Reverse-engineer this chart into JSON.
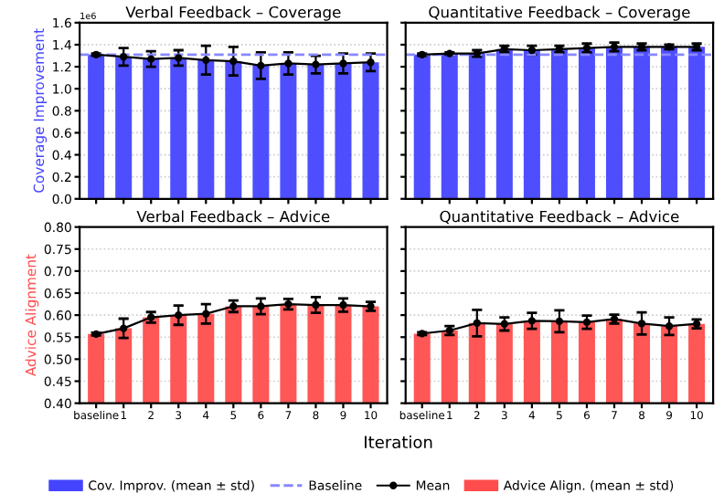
{
  "chart_data": [
    {
      "type": "bar",
      "title": "Verbal Feedback – Coverage",
      "ylabel": "Coverage Improvement",
      "annotations": [
        "1e6"
      ],
      "categories": [
        "baseline",
        "1",
        "2",
        "3",
        "4",
        "5",
        "6",
        "7",
        "8",
        "9",
        "10"
      ],
      "ylim": [
        0,
        1.6
      ],
      "yticks": [
        {
          "value": 0,
          "label": "0.0"
        },
        0.2,
        0.4,
        0.6,
        0.8,
        {
          "value": 1,
          "label": "1.0"
        },
        1.2,
        1.4,
        1.6
      ],
      "tick_labels": "y",
      "grid": "y",
      "legend": "bottom",
      "ref_lines": [
        {
          "axis": "y",
          "value": 1.31,
          "label": "Baseline",
          "color": "#8888ff",
          "line_style": "dashed"
        }
      ],
      "series": [
        {
          "name": "Cov. Improv. (mean ± std)",
          "type": "bar",
          "color": "#4444ff",
          "values": [
            1.31,
            1.29,
            1.27,
            1.28,
            1.26,
            1.25,
            1.21,
            1.23,
            1.22,
            1.23,
            1.24
          ]
        },
        {
          "name": "Mean",
          "type": "line",
          "color": "#000000",
          "marker": "circle",
          "values": [
            1.31,
            1.29,
            1.27,
            1.28,
            1.26,
            1.25,
            1.21,
            1.23,
            1.22,
            1.23,
            1.24
          ],
          "errors": [
            0.01,
            0.08,
            0.07,
            0.07,
            0.13,
            0.13,
            0.12,
            0.1,
            0.08,
            0.09,
            0.08
          ]
        }
      ]
    },
    {
      "type": "bar",
      "title": "Quantitative Feedback – Coverage",
      "categories": [
        "baseline",
        "1",
        "2",
        "3",
        "4",
        "5",
        "6",
        "7",
        "8",
        "9",
        "10"
      ],
      "ylim": [
        0,
        1.6
      ],
      "yticks": [
        0,
        0.2,
        0.4,
        0.6,
        0.8,
        1,
        1.2,
        1.4,
        1.6
      ],
      "tick_labels": false,
      "grid": "y",
      "legend": "bottom",
      "ref_lines": [
        {
          "axis": "y",
          "value": 1.31,
          "color": "#8888ff",
          "line_style": "dashed"
        }
      ],
      "series": [
        {
          "name": "Cov. Improv. (mean ± std)",
          "type": "bar",
          "color": "#4444ff",
          "values": [
            1.31,
            1.32,
            1.32,
            1.36,
            1.35,
            1.36,
            1.37,
            1.38,
            1.38,
            1.38,
            1.38
          ]
        },
        {
          "name": "Mean",
          "type": "line",
          "color": "#000000",
          "marker": "circle",
          "values": [
            1.31,
            1.32,
            1.32,
            1.36,
            1.35,
            1.36,
            1.37,
            1.38,
            1.38,
            1.38,
            1.38
          ],
          "errors": [
            0.01,
            0.01,
            0.03,
            0.03,
            0.04,
            0.03,
            0.04,
            0.04,
            0.03,
            0.02,
            0.03
          ]
        }
      ]
    },
    {
      "type": "bar",
      "title": "Verbal Feedback – Advice",
      "ylabel": "Advice Alignment",
      "xlabel": "Iteration",
      "categories": [
        "baseline",
        "1",
        "2",
        "3",
        "4",
        "5",
        "6",
        "7",
        "8",
        "9",
        "10"
      ],
      "ylim": [
        0.4,
        0.8
      ],
      "yticks": [
        {
          "value": 0.4,
          "label": "0.40"
        },
        0.45,
        {
          "value": 0.5,
          "label": "0.50"
        },
        0.55,
        {
          "value": 0.6,
          "label": "0.60"
        },
        0.65,
        {
          "value": 0.7,
          "label": "0.70"
        },
        0.75,
        {
          "value": 0.8,
          "label": "0.80"
        }
      ],
      "grid": "y",
      "legend": "bottom",
      "series": [
        {
          "name": "Advice Align. (mean ± std)",
          "type": "bar",
          "color": "#ff4d4d",
          "values": [
            0.557,
            0.57,
            0.595,
            0.6,
            0.603,
            0.62,
            0.62,
            0.625,
            0.623,
            0.623,
            0.62
          ]
        },
        {
          "name": "Mean",
          "type": "line",
          "color": "#000000",
          "marker": "circle",
          "values": [
            0.557,
            0.57,
            0.595,
            0.6,
            0.603,
            0.62,
            0.62,
            0.625,
            0.623,
            0.623,
            0.62
          ],
          "errors": [
            0.003,
            0.022,
            0.012,
            0.022,
            0.022,
            0.013,
            0.018,
            0.012,
            0.018,
            0.015,
            0.01
          ]
        }
      ]
    },
    {
      "type": "bar",
      "title": "Quantitative Feedback – Advice",
      "categories": [
        "baseline",
        "1",
        "2",
        "3",
        "4",
        "5",
        "6",
        "7",
        "8",
        "9",
        "10"
      ],
      "ylim": [
        0.4,
        0.8
      ],
      "yticks": [
        0.4,
        0.45,
        0.5,
        0.55,
        0.6,
        0.65,
        0.7,
        0.75,
        0.8
      ],
      "tick_labels": "x",
      "grid": "y",
      "legend": "bottom",
      "series": [
        {
          "name": "Advice Align. (mean ± std)",
          "type": "bar",
          "color": "#ff4d4d",
          "values": [
            0.558,
            0.565,
            0.582,
            0.58,
            0.587,
            0.586,
            0.584,
            0.591,
            0.581,
            0.575,
            0.58
          ]
        },
        {
          "name": "Mean",
          "type": "line",
          "color": "#000000",
          "marker": "circle",
          "values": [
            0.558,
            0.565,
            0.582,
            0.58,
            0.587,
            0.586,
            0.584,
            0.591,
            0.581,
            0.575,
            0.58
          ],
          "errors": [
            0.003,
            0.01,
            0.03,
            0.015,
            0.018,
            0.025,
            0.015,
            0.01,
            0.025,
            0.02,
            0.01
          ]
        }
      ]
    }
  ]
}
